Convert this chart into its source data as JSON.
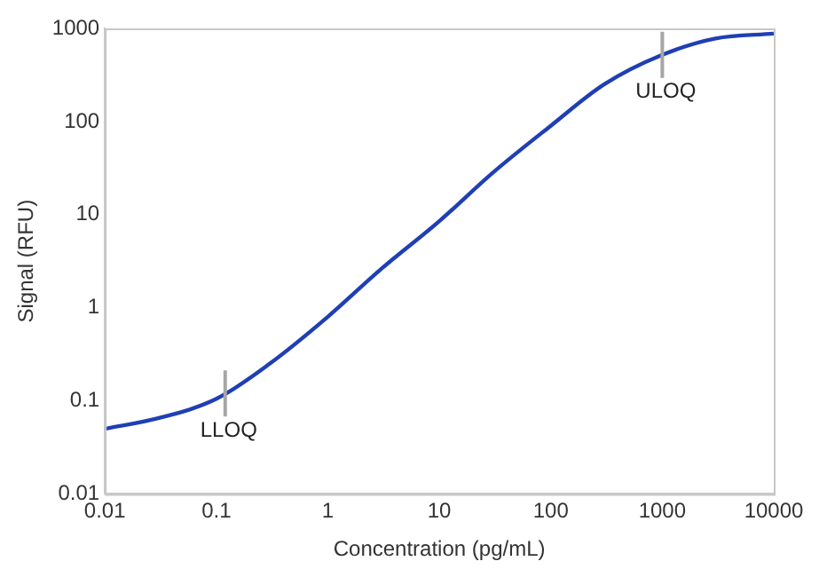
{
  "chart_data": {
    "type": "line",
    "xlabel": "Concentration (pg/mL)",
    "ylabel": "Signal (RFU)",
    "log": "xy",
    "x": [
      0.01,
      0.03,
      0.1,
      0.3,
      1,
      3,
      10,
      30,
      100,
      300,
      1000,
      3000,
      10000
    ],
    "series": [
      {
        "color": "#1f3fb5",
        "values": [
          0.05,
          0.065,
          0.105,
          0.25,
          0.8,
          2.6,
          8.5,
          28,
          90,
          250,
          520,
          780,
          880
        ]
      }
    ],
    "xlim": [
      0.01,
      10000
    ],
    "xticks": [
      0.01,
      0.1,
      1,
      10,
      100,
      1000,
      10000
    ],
    "ylim": [
      0.01,
      1000
    ],
    "yticks": [
      0.01,
      0.1,
      1,
      10,
      100,
      1000
    ],
    "grid": false,
    "legend": false,
    "marker": "none",
    "line_style": "solid",
    "annotations": [
      {
        "text": "LLOQ",
        "x": 0.12,
        "y": 0.12
      },
      {
        "text": "ULOQ",
        "x": 1000,
        "y": 520
      }
    ]
  }
}
